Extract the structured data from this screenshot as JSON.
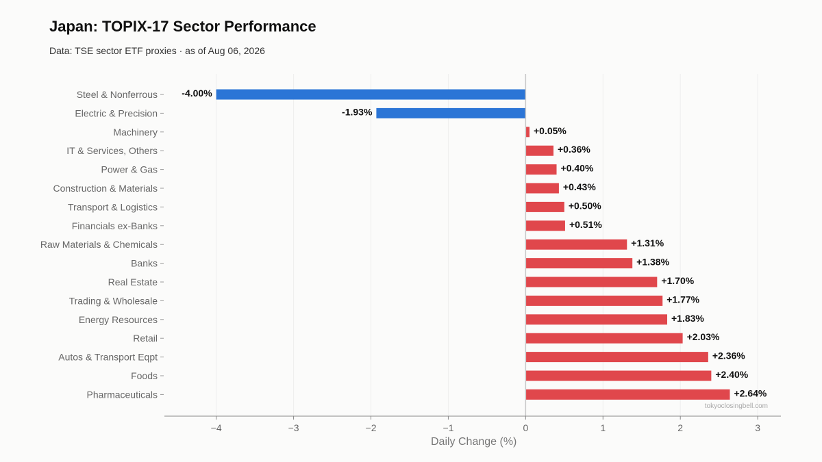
{
  "title": "Japan: TOPIX-17 Sector Performance",
  "subtitle": "Data: TSE sector ETF proxies · as of Aug 06, 2026",
  "watermark": "tokyoclosingbell.com",
  "colors": {
    "negative": "#2b75d6",
    "positive": "#e0474c",
    "zero_line": "#c8c8c8",
    "grid": "#eeeeee"
  },
  "chart_data": {
    "type": "bar",
    "orientation": "horizontal",
    "categories": [
      "Steel & Nonferrous",
      "Electric & Precision",
      "Machinery",
      "IT & Services, Others",
      "Power & Gas",
      "Construction & Materials",
      "Transport & Logistics",
      "Financials ex-Banks",
      "Raw Materials & Chemicals",
      "Banks",
      "Real Estate",
      "Trading & Wholesale",
      "Energy Resources",
      "Retail",
      "Autos & Transport Eqpt",
      "Foods",
      "Pharmaceuticals"
    ],
    "values": [
      -4.0,
      -1.93,
      0.05,
      0.36,
      0.4,
      0.43,
      0.5,
      0.51,
      1.31,
      1.38,
      1.7,
      1.77,
      1.83,
      2.03,
      2.36,
      2.4,
      2.64
    ],
    "value_labels": [
      "-4.00%",
      "-1.93%",
      "+0.05%",
      "+0.36%",
      "+0.40%",
      "+0.43%",
      "+0.50%",
      "+0.51%",
      "+1.31%",
      "+1.38%",
      "+1.70%",
      "+1.77%",
      "+1.83%",
      "+2.03%",
      "+2.36%",
      "+2.40%",
      "+2.64%"
    ],
    "xlabel": "Daily Change (%)",
    "ylabel": "",
    "xlim": [
      -4.67,
      3.3
    ],
    "xticks": [
      -4,
      -3,
      -2,
      -1,
      0,
      1,
      2,
      3
    ],
    "xtick_labels": [
      "−4",
      "−3",
      "−2",
      "−1",
      "0",
      "1",
      "2",
      "3"
    ],
    "grid": "vertical",
    "legend": "none"
  }
}
